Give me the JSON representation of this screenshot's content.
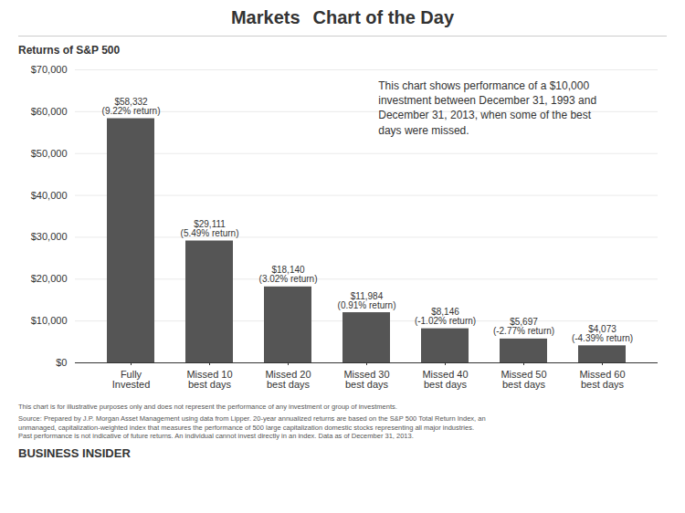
{
  "chart_data": {
    "type": "bar",
    "title": "Markets",
    "subtitle": "Chart of the Day",
    "ylabel": "Returns of S&P 500",
    "categories": [
      "Fully\nInvested",
      "Missed 10\nbest days",
      "Missed 20\nbest days",
      "Missed 30\nbest days",
      "Missed 40\nbest days",
      "Missed 50\nbest days",
      "Missed 60\nbest days"
    ],
    "values": [
      58332,
      29111,
      18140,
      11984,
      8146,
      5697,
      4073
    ],
    "value_labels": [
      "$58,332\n(9.22% return)",
      "$29,111\n(5.49% return)",
      "$18,140\n(3.02% return)",
      "$11,984\n(0.91% return)",
      "$8,146\n(-1.02% return)",
      "$5,697\n(-2.77% return)",
      "$4,073\n(-4.39% return)"
    ],
    "data_labels": true,
    "color": "#555555",
    "ylim": [
      0,
      70000
    ],
    "yticks": [
      {
        "value": 0,
        "label": "$0"
      },
      {
        "value": 10000,
        "label": "$10,000"
      },
      {
        "value": 20000,
        "label": "$20,000"
      },
      {
        "value": 30000,
        "label": "$30,000"
      },
      {
        "value": 40000,
        "label": "$40,000"
      },
      {
        "value": 50000,
        "label": "$50,000"
      },
      {
        "value": 60000,
        "label": "$60,000"
      },
      {
        "value": 70000,
        "label": "$70,000"
      }
    ],
    "grid": true,
    "annotations": [
      "This chart shows performance of a $10,000\ninvestment between December 31, 1993 and\nDecember 31, 2013, when some of the best\ndays were missed."
    ],
    "footnotes": [
      "This chart is for illustrative purposes only and does not represent the performance of any investment or group of investments.",
      "Source: Prepared by J.P. Morgan Asset Management using data from Lipper. 20-year annualized returns are based on the S&P 500 Total Return Index, an\nunmanaged, capitalization-weighted index that measures the performance of 500 large capitalization domestic stocks representing all major industries.\nPast performance is not indicative of future returns. An individual cannot invest directly in an index. Data as of December 31, 2013."
    ],
    "brand": "BUSINESS INSIDER"
  }
}
